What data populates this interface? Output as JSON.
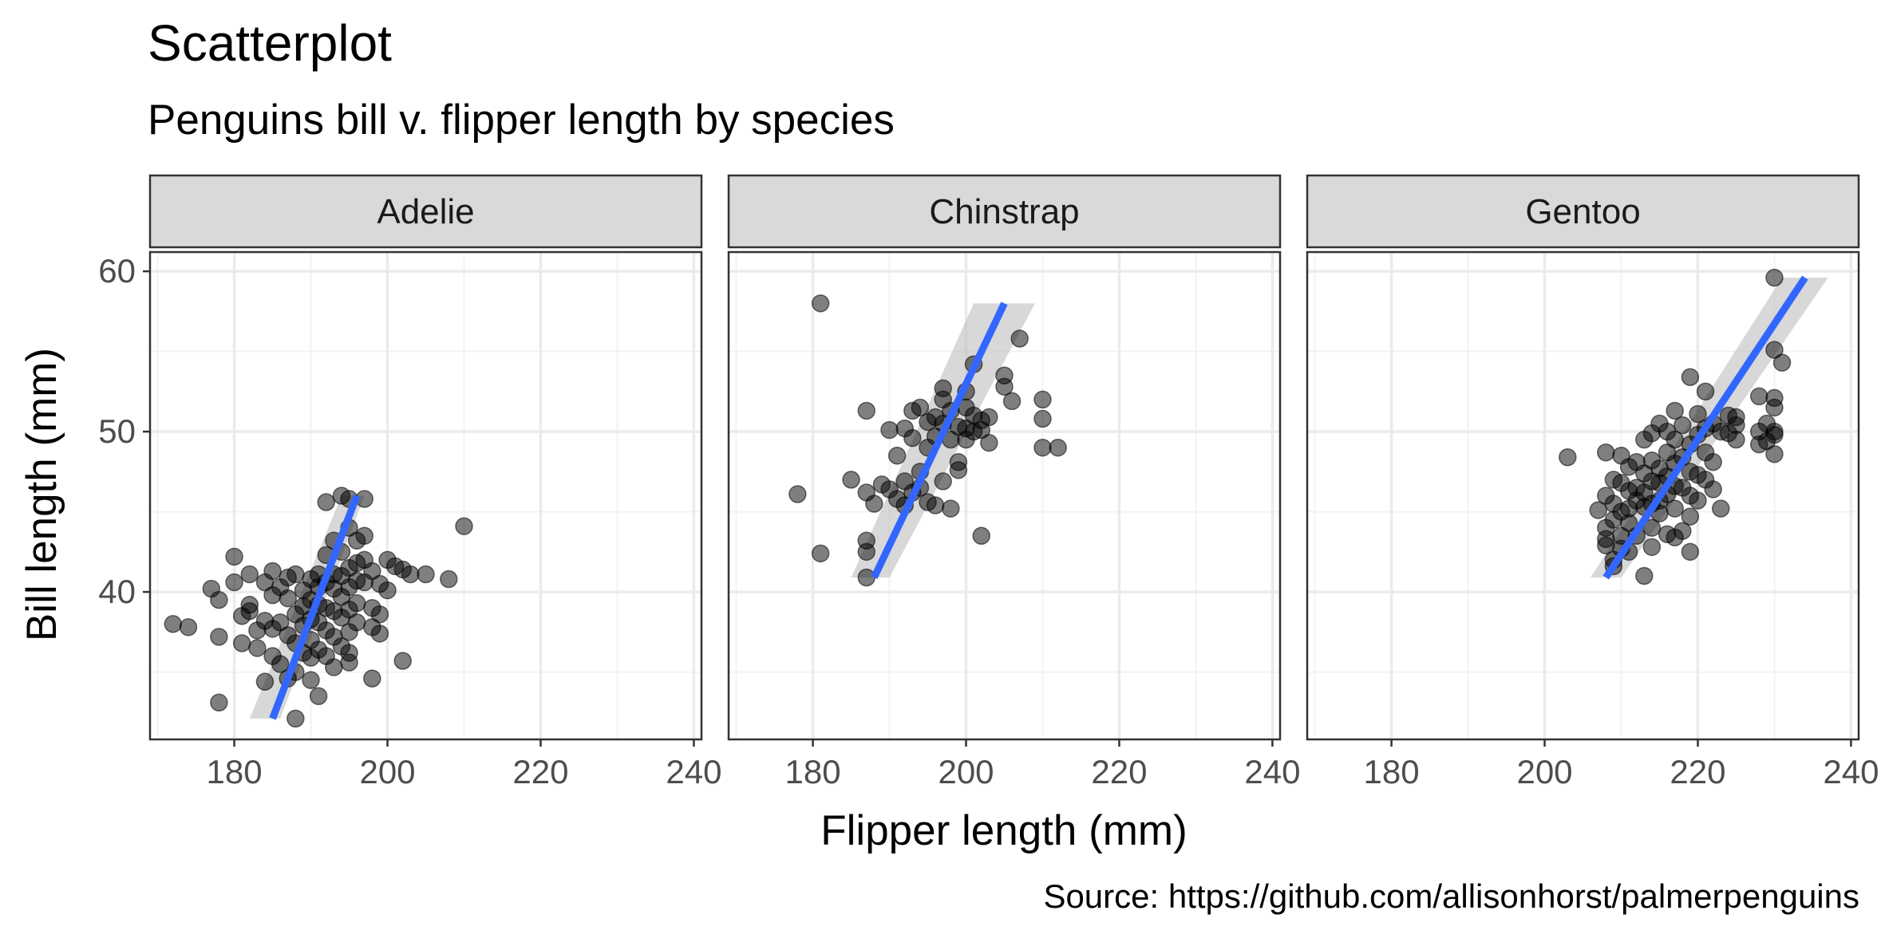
{
  "chart_data": {
    "type": "scatter",
    "title": "Scatterplot",
    "subtitle": "Penguins bill v. flipper length by species",
    "xlabel": "Flipper length (mm)",
    "ylabel": "Bill length (mm)",
    "caption": "Source: https://github.com/allisonhorst/palmerpenguins",
    "xlim": [
      169,
      241
    ],
    "ylim": [
      30.8,
      61.2
    ],
    "x_ticks": [
      180,
      200,
      220,
      240
    ],
    "y_ticks": [
      40,
      50,
      60
    ],
    "grid": true,
    "point_color": "#000000",
    "trend_color": "#3366FF",
    "band_color": "#BEBEBE",
    "strip_color": "#D9D9D9",
    "panels": [
      {
        "name": "Adelie",
        "trend": {
          "x": [
            185,
            196
          ],
          "y": [
            32.1,
            46.0
          ]
        },
        "band": {
          "lower": [
            [
              182,
              32.1
            ],
            [
              194,
              46.0
            ]
          ],
          "upper": [
            [
              186,
              32.1
            ],
            [
              197,
              46.0
            ]
          ]
        },
        "points": [
          [
            172,
            38.0
          ],
          [
            174,
            37.8
          ],
          [
            177,
            40.2
          ],
          [
            178,
            39.5
          ],
          [
            178,
            37.2
          ],
          [
            178,
            33.1
          ],
          [
            180,
            42.2
          ],
          [
            180,
            40.6
          ],
          [
            181,
            38.5
          ],
          [
            181,
            36.8
          ],
          [
            182,
            41.1
          ],
          [
            182,
            39.2
          ],
          [
            182,
            38.8
          ],
          [
            183,
            37.6
          ],
          [
            183,
            36.5
          ],
          [
            184,
            40.6
          ],
          [
            184,
            38.2
          ],
          [
            184,
            34.4
          ],
          [
            185,
            41.3
          ],
          [
            185,
            39.8
          ],
          [
            185,
            37.7
          ],
          [
            185,
            36.0
          ],
          [
            186,
            40.3
          ],
          [
            186,
            38.1
          ],
          [
            186,
            35.5
          ],
          [
            187,
            40.9
          ],
          [
            187,
            39.6
          ],
          [
            187,
            37.3
          ],
          [
            187,
            34.6
          ],
          [
            188,
            41.1
          ],
          [
            188,
            38.6
          ],
          [
            188,
            36.8
          ],
          [
            188,
            35.0
          ],
          [
            188,
            32.1
          ],
          [
            189,
            40.1
          ],
          [
            189,
            39.1
          ],
          [
            189,
            37.9
          ],
          [
            189,
            36.2
          ],
          [
            190,
            40.8
          ],
          [
            190,
            39.5
          ],
          [
            190,
            38.3
          ],
          [
            190,
            37.0
          ],
          [
            190,
            35.9
          ],
          [
            190,
            34.5
          ],
          [
            191,
            41.1
          ],
          [
            191,
            40.3
          ],
          [
            191,
            39.2
          ],
          [
            191,
            38.1
          ],
          [
            191,
            36.4
          ],
          [
            191,
            33.5
          ],
          [
            192,
            45.6
          ],
          [
            192,
            42.3
          ],
          [
            192,
            40.6
          ],
          [
            192,
            39.0
          ],
          [
            192,
            37.6
          ],
          [
            192,
            36.0
          ],
          [
            193,
            43.2
          ],
          [
            193,
            41.1
          ],
          [
            193,
            40.2
          ],
          [
            193,
            38.8
          ],
          [
            193,
            37.2
          ],
          [
            193,
            35.3
          ],
          [
            194,
            46.0
          ],
          [
            194,
            42.5
          ],
          [
            194,
            41.0
          ],
          [
            194,
            39.7
          ],
          [
            194,
            38.4
          ],
          [
            194,
            36.6
          ],
          [
            195,
            45.8
          ],
          [
            195,
            44.0
          ],
          [
            195,
            41.5
          ],
          [
            195,
            40.3
          ],
          [
            195,
            38.9
          ],
          [
            195,
            37.5
          ],
          [
            195,
            36.2
          ],
          [
            195,
            35.6
          ],
          [
            196,
            43.2
          ],
          [
            196,
            41.8
          ],
          [
            196,
            40.7
          ],
          [
            196,
            39.3
          ],
          [
            196,
            38.1
          ],
          [
            197,
            45.8
          ],
          [
            197,
            43.5
          ],
          [
            197,
            42.0
          ],
          [
            197,
            40.6
          ],
          [
            198,
            41.3
          ],
          [
            198,
            39.0
          ],
          [
            198,
            37.8
          ],
          [
            198,
            34.6
          ],
          [
            199,
            40.5
          ],
          [
            199,
            38.6
          ],
          [
            199,
            37.4
          ],
          [
            200,
            42.0
          ],
          [
            200,
            40.1
          ],
          [
            201,
            41.6
          ],
          [
            202,
            41.4
          ],
          [
            202,
            35.7
          ],
          [
            203,
            41.1
          ],
          [
            205,
            41.1
          ],
          [
            208,
            40.8
          ],
          [
            210,
            44.1
          ]
        ]
      },
      {
        "name": "Chinstrap",
        "trend": {
          "x": [
            188,
            205
          ],
          "y": [
            40.9,
            58.0
          ]
        },
        "band": {
          "lower": [
            [
              185,
              40.9
            ],
            [
              201,
              58.0
            ]
          ],
          "upper": [
            [
              190,
              40.9
            ],
            [
              209,
              58.0
            ]
          ]
        },
        "points": [
          [
            178,
            46.1
          ],
          [
            181,
            58.0
          ],
          [
            181,
            42.4
          ],
          [
            185,
            47.0
          ],
          [
            187,
            46.2
          ],
          [
            187,
            51.3
          ],
          [
            187,
            43.2
          ],
          [
            187,
            42.5
          ],
          [
            187,
            40.9
          ],
          [
            188,
            45.5
          ],
          [
            189,
            46.7
          ],
          [
            190,
            46.4
          ],
          [
            190,
            50.1
          ],
          [
            191,
            45.8
          ],
          [
            191,
            48.5
          ],
          [
            192,
            46.9
          ],
          [
            192,
            50.2
          ],
          [
            192,
            45.4
          ],
          [
            193,
            51.3
          ],
          [
            193,
            49.6
          ],
          [
            193,
            46.2
          ],
          [
            194,
            51.5
          ],
          [
            194,
            47.5
          ],
          [
            194,
            46.5
          ],
          [
            195,
            50.6
          ],
          [
            195,
            49.0
          ],
          [
            195,
            45.6
          ],
          [
            196,
            50.9
          ],
          [
            196,
            49.7
          ],
          [
            196,
            45.4
          ],
          [
            197,
            52.7
          ],
          [
            197,
            52.0
          ],
          [
            197,
            50.5
          ],
          [
            197,
            46.9
          ],
          [
            198,
            51.3
          ],
          [
            198,
            45.2
          ],
          [
            198,
            49.5
          ],
          [
            199,
            50.3
          ],
          [
            199,
            48.1
          ],
          [
            199,
            47.6
          ],
          [
            200,
            51.5
          ],
          [
            200,
            50.2
          ],
          [
            200,
            49.5
          ],
          [
            200,
            52.5
          ],
          [
            201,
            51.0
          ],
          [
            201,
            50.0
          ],
          [
            201,
            54.2
          ],
          [
            202,
            43.5
          ],
          [
            202,
            50.7
          ],
          [
            202,
            50.1
          ],
          [
            203,
            50.9
          ],
          [
            203,
            49.3
          ],
          [
            205,
            53.5
          ],
          [
            205,
            52.8
          ],
          [
            206,
            51.9
          ],
          [
            207,
            55.8
          ],
          [
            210,
            52.0
          ],
          [
            210,
            50.8
          ],
          [
            210,
            49.0
          ],
          [
            212,
            49.0
          ]
        ]
      },
      {
        "name": "Gentoo",
        "trend": {
          "x": [
            208,
            234
          ],
          "y": [
            40.9,
            59.6
          ]
        },
        "band": {
          "lower": [
            [
              206,
              40.9
            ],
            [
              231,
              59.6
            ]
          ],
          "upper": [
            [
              210,
              40.9
            ],
            [
              237,
              59.6
            ]
          ]
        },
        "points": [
          [
            203,
            48.4
          ],
          [
            207,
            45.1
          ],
          [
            208,
            48.7
          ],
          [
            208,
            46.0
          ],
          [
            208,
            44.0
          ],
          [
            208,
            43.3
          ],
          [
            208,
            42.9
          ],
          [
            209,
            47.0
          ],
          [
            209,
            45.5
          ],
          [
            209,
            44.5
          ],
          [
            209,
            42.0
          ],
          [
            209,
            41.6
          ],
          [
            210,
            48.5
          ],
          [
            210,
            46.8
          ],
          [
            210,
            45.0
          ],
          [
            210,
            43.5
          ],
          [
            210,
            42.7
          ],
          [
            211,
            47.8
          ],
          [
            211,
            46.3
          ],
          [
            211,
            45.2
          ],
          [
            211,
            44.3
          ],
          [
            211,
            42.5
          ],
          [
            212,
            48.1
          ],
          [
            212,
            46.5
          ],
          [
            212,
            45.7
          ],
          [
            212,
            43.5
          ],
          [
            213,
            49.5
          ],
          [
            213,
            47.4
          ],
          [
            213,
            46.2
          ],
          [
            213,
            45.3
          ],
          [
            213,
            41.0
          ],
          [
            214,
            49.9
          ],
          [
            214,
            48.2
          ],
          [
            214,
            46.9
          ],
          [
            214,
            45.5
          ],
          [
            214,
            44.0
          ],
          [
            214,
            42.8
          ],
          [
            215,
            50.5
          ],
          [
            215,
            47.7
          ],
          [
            215,
            46.8
          ],
          [
            215,
            45.7
          ],
          [
            215,
            44.9
          ],
          [
            216,
            50.0
          ],
          [
            216,
            48.7
          ],
          [
            216,
            47.2
          ],
          [
            216,
            46.1
          ],
          [
            216,
            43.6
          ],
          [
            217,
            51.3
          ],
          [
            217,
            49.5
          ],
          [
            217,
            48.0
          ],
          [
            217,
            46.6
          ],
          [
            217,
            45.2
          ],
          [
            217,
            43.4
          ],
          [
            218,
            50.4
          ],
          [
            218,
            48.4
          ],
          [
            218,
            46.5
          ],
          [
            218,
            43.8
          ],
          [
            219,
            53.4
          ],
          [
            219,
            49.2
          ],
          [
            219,
            47.5
          ],
          [
            219,
            46.0
          ],
          [
            219,
            44.7
          ],
          [
            219,
            42.5
          ],
          [
            220,
            51.1
          ],
          [
            220,
            49.8
          ],
          [
            220,
            47.3
          ],
          [
            220,
            45.7
          ],
          [
            221,
            52.5
          ],
          [
            221,
            50.2
          ],
          [
            221,
            48.7
          ],
          [
            221,
            47.0
          ],
          [
            222,
            50.5
          ],
          [
            222,
            48.1
          ],
          [
            222,
            46.4
          ],
          [
            223,
            50.0
          ],
          [
            223,
            45.2
          ],
          [
            224,
            51.0
          ],
          [
            224,
            49.9
          ],
          [
            225,
            50.4
          ],
          [
            225,
            49.5
          ],
          [
            225,
            50.9
          ],
          [
            228,
            52.2
          ],
          [
            228,
            50.0
          ],
          [
            228,
            49.2
          ],
          [
            229,
            50.5
          ],
          [
            229,
            49.4
          ],
          [
            230,
            59.6
          ],
          [
            230,
            55.1
          ],
          [
            230,
            52.1
          ],
          [
            230,
            51.5
          ],
          [
            230,
            50.0
          ],
          [
            230,
            49.8
          ],
          [
            230,
            48.6
          ],
          [
            231,
            54.3
          ]
        ]
      }
    ]
  }
}
